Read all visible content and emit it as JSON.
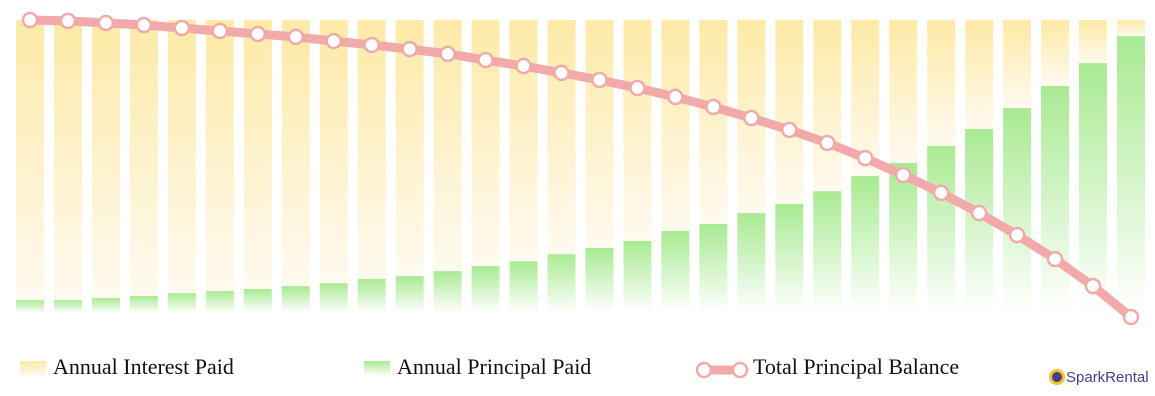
{
  "chart_data": {
    "type": "bar-line",
    "categories": [
      null,
      null,
      null,
      null,
      null,
      null,
      null,
      null,
      null,
      null,
      null,
      null,
      null,
      null,
      null,
      null,
      null,
      null,
      null,
      null,
      null,
      null,
      null,
      null,
      null,
      null,
      null,
      null,
      null,
      null
    ],
    "series": [
      {
        "name": "Annual Interest Paid",
        "color": "#fdecac",
        "type": "bar",
        "values": [
          95.6,
          95.6,
          94.9,
          94.2,
          93.2,
          92.5,
          91.8,
          90.8,
          89.8,
          88.4,
          87.4,
          85.7,
          84.0,
          82.3,
          79.9,
          77.8,
          75.4,
          72.0,
          69.6,
          65.9,
          62.8,
          58.4,
          53.2,
          48.8,
          43.0,
          37.2,
          30.0,
          22.5,
          14.7,
          5.5
        ]
      },
      {
        "name": "Annual Principal Paid",
        "color": "#aeeb98",
        "type": "bar",
        "values": [
          4.4,
          4.4,
          5.1,
          5.8,
          6.8,
          7.5,
          8.2,
          9.2,
          10.2,
          11.6,
          12.6,
          14.3,
          16.0,
          17.7,
          20.1,
          22.2,
          24.6,
          28.0,
          30.4,
          34.1,
          37.2,
          41.6,
          46.8,
          51.2,
          57.0,
          62.8,
          70.0,
          77.5,
          85.3,
          94.5
        ]
      },
      {
        "name": "Total Principal Balance",
        "color": "#f2a9a9",
        "type": "line",
        "axis": "y2",
        "values": [
          100,
          99.7,
          99.0,
          98.3,
          97.3,
          96.3,
          95.3,
          94.3,
          92.9,
          91.6,
          90.2,
          88.6,
          86.5,
          84.5,
          82.2,
          79.8,
          77.1,
          74.1,
          70.7,
          67.0,
          63.0,
          58.6,
          53.5,
          47.8,
          41.8,
          35.0,
          27.6,
          19.5,
          10.4,
          0
        ]
      }
    ],
    "ylim": [
      0,
      100
    ],
    "y2lim": [
      0,
      100
    ],
    "brand": "SparkRental"
  }
}
